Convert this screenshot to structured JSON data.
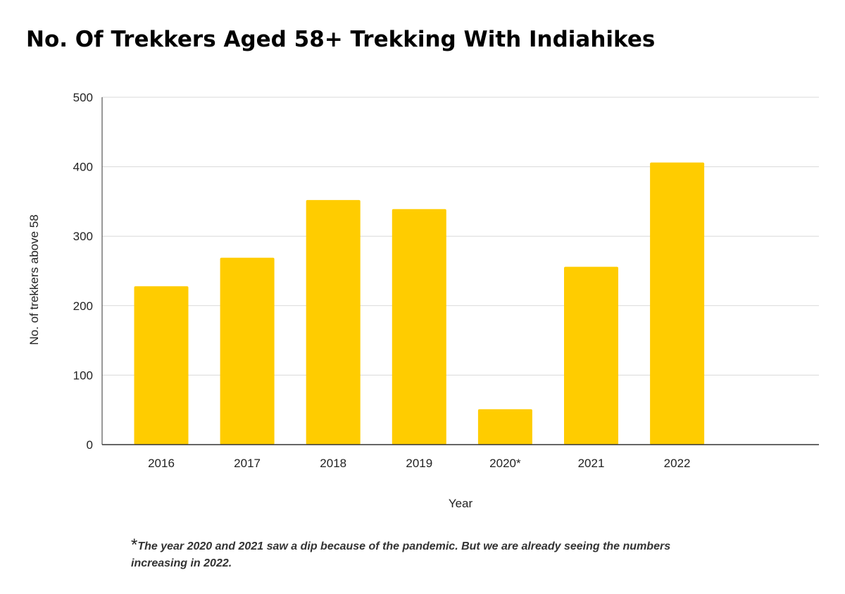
{
  "chart_data": {
    "type": "bar",
    "title": "No. Of Trekkers Aged 58+ Trekking With Indiahikes",
    "xlabel": "Year",
    "ylabel": "No. of trekkers above 58",
    "categories": [
      "2016",
      "2017",
      "2018",
      "2019",
      "2020*",
      "2021",
      "2022"
    ],
    "values": [
      228,
      269,
      352,
      339,
      51,
      256,
      406
    ],
    "ylim": [
      0,
      500
    ],
    "yticks": [
      0,
      100,
      200,
      300,
      400,
      500
    ],
    "grid": true,
    "legend": "none",
    "colors": {
      "bar": "#ffcc00",
      "grid": "#d9d9d9",
      "axis": "#333333"
    }
  },
  "footnote": {
    "marker": "*",
    "text": "The year 2020 and 2021 saw a dip because of the pandemic. But we are already seeing the numbers increasing in 2022."
  }
}
